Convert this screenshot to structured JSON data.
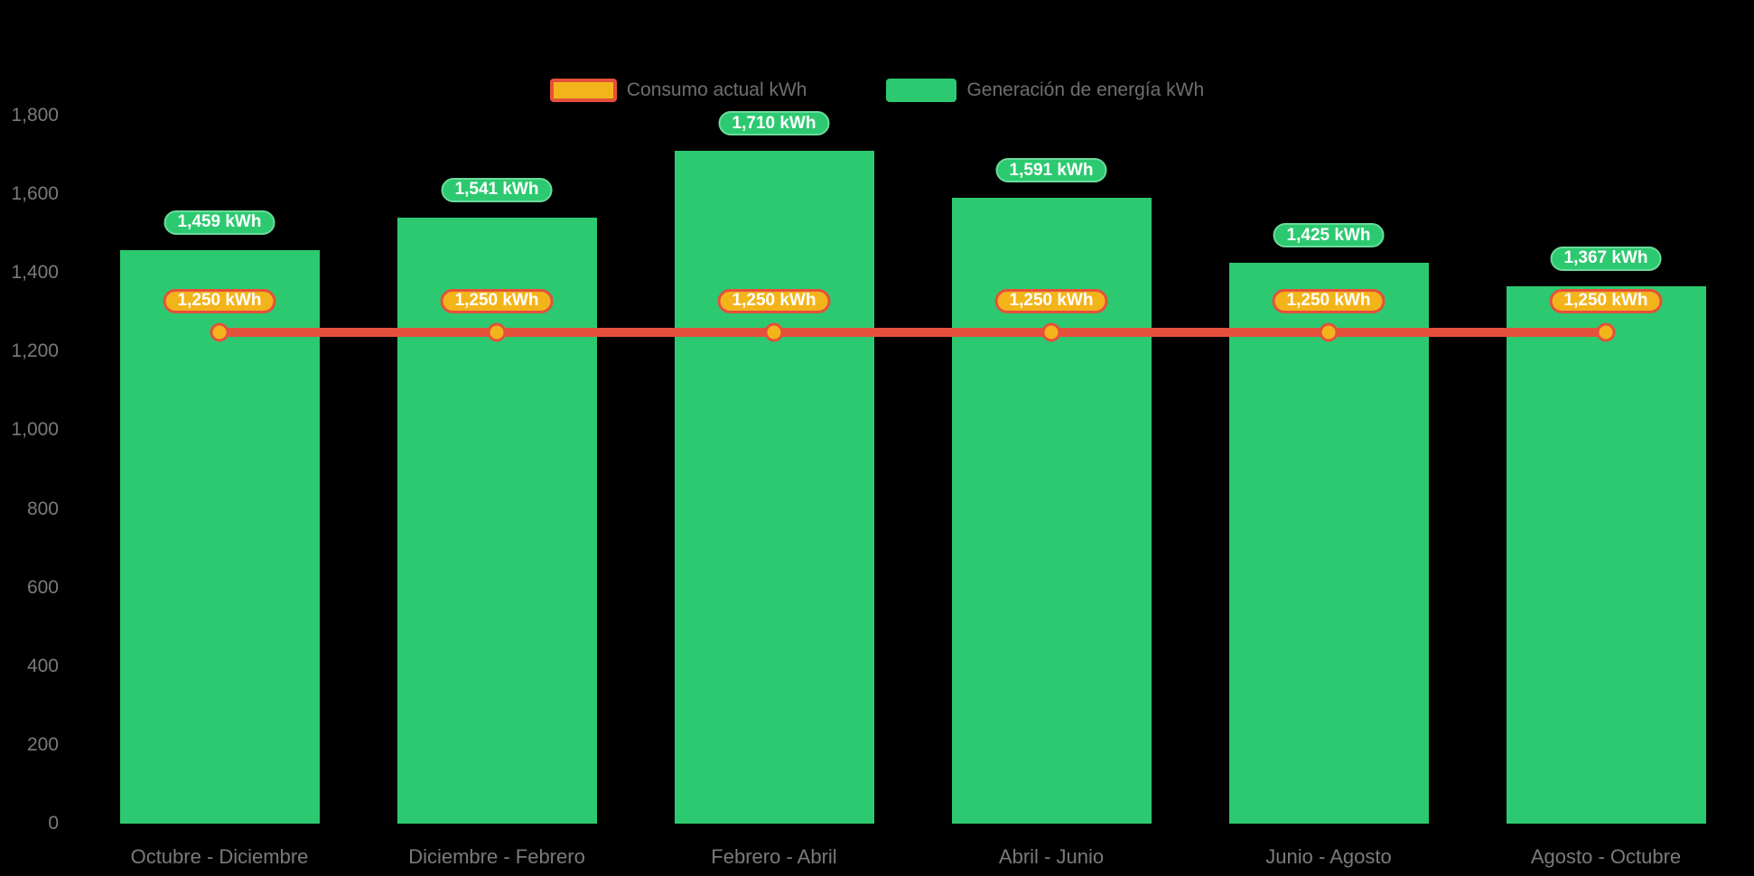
{
  "colors": {
    "background": "#000000",
    "generation_green": "#2DC970",
    "green_pill_border": "#6ADC9B",
    "consumption_yellow": "#F3B41B",
    "consumption_red": "#E5503C",
    "axis_text": "#7A7A7A",
    "legend_text": "#6E6E6E",
    "pill_text": "#FFFFFF"
  },
  "legend": {
    "items": [
      {
        "label": "Consumo actual kWh",
        "series": "consumption"
      },
      {
        "label": "Generación de energía kWh",
        "series": "generation"
      }
    ]
  },
  "y_axis": {
    "ticks": [
      {
        "label": "1,800",
        "value": 1800
      },
      {
        "label": "1,600",
        "value": 1600
      },
      {
        "label": "1,400",
        "value": 1400
      },
      {
        "label": "1,200",
        "value": 1200
      },
      {
        "label": "1,000",
        "value": 1000
      },
      {
        "label": "800",
        "value": 800
      },
      {
        "label": "600",
        "value": 600
      },
      {
        "label": "400",
        "value": 400
      },
      {
        "label": "200",
        "value": 200
      },
      {
        "label": "0",
        "value": 0
      }
    ]
  },
  "chart_data": {
    "type": "bar",
    "subtype": "bar-and-line-combo",
    "title": "",
    "xlabel": "",
    "ylabel": "",
    "ylim": [
      0,
      1800
    ],
    "grid": false,
    "legend_position": "top",
    "categories": [
      "Octubre - Diciembre",
      "Diciembre - Febrero",
      "Febrero - Abril",
      "Abril - Junio",
      "Junio - Agosto",
      "Agosto - Octubre"
    ],
    "series": [
      {
        "name": "Generación de energía kWh",
        "type": "bar",
        "color": "#2DC970",
        "values": [
          1459,
          1541,
          1710,
          1591,
          1425,
          1367
        ],
        "data_labels": [
          "1,459 kWh",
          "1,541 kWh",
          "1,710 kWh",
          "1,591 kWh",
          "1,425 kWh",
          "1,367 kWh"
        ]
      },
      {
        "name": "Consumo actual kWh",
        "type": "line",
        "color": "#E5503C",
        "marker_fill": "#F3B41B",
        "values": [
          1250,
          1250,
          1250,
          1250,
          1250,
          1250
        ],
        "data_labels": [
          "1,250 kWh",
          "1,250 kWh",
          "1,250 kWh",
          "1,250 kWh",
          "1,250 kWh",
          "1,250 kWh"
        ]
      }
    ]
  }
}
